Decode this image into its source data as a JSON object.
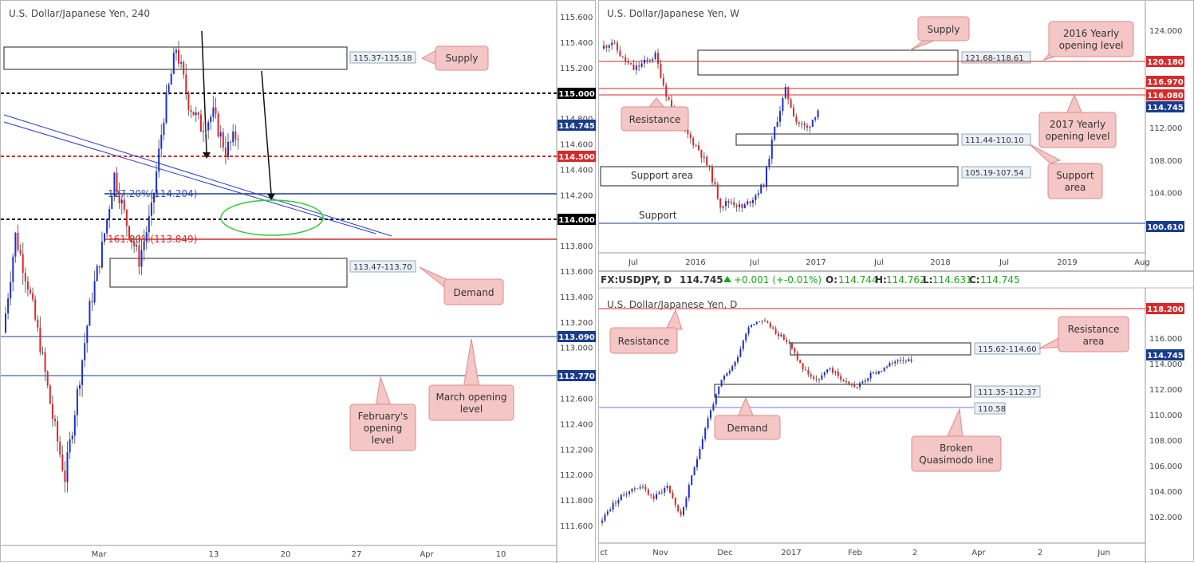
{
  "panels": {
    "h4": {
      "title": "U.S. Dollar/Japanese Yen, 240",
      "y_ticks": [
        "115.600",
        "115.400",
        "115.200",
        "115.000",
        "114.800",
        "114.600",
        "114.400",
        "114.200",
        "114.000",
        "113.800",
        "113.600",
        "113.400",
        "113.200",
        "113.000",
        "112.800",
        "112.600",
        "112.400",
        "112.200",
        "112.000",
        "111.800",
        "111.600"
      ],
      "x_ticks": [
        "Mar",
        "13",
        "20",
        "27",
        "Apr",
        "10"
      ],
      "price_tags": [
        {
          "label": "115.000",
          "color": "#000000"
        },
        {
          "label": "114.745",
          "color": "#1a3c8c"
        },
        {
          "label": "114.500",
          "color": "#d72a2a"
        },
        {
          "label": "114.000",
          "color": "#000000"
        },
        {
          "label": "113.090",
          "color": "#1a3c8c"
        },
        {
          "label": "112.770",
          "color": "#1a3c8c"
        }
      ],
      "zone_labels": {
        "supply": "115.37-115.18",
        "demand": "113.47-113.70"
      },
      "fib_labels": {
        "ext127": "127.20%(114.204)",
        "ext161": "161.80%(113.849)"
      },
      "callouts": {
        "supply": "Supply",
        "demand": "Demand",
        "feb_line1": "February's",
        "feb_line2": "opening",
        "feb_line3": "level",
        "mar_line1": "March opening",
        "mar_line2": "level"
      }
    },
    "weekly": {
      "title": "U.S. Dollar/Japanese Yen, W",
      "y_ticks": [
        "124.000",
        "120.000",
        "116.000",
        "112.000",
        "108.000",
        "104.000",
        "100.000"
      ],
      "x_ticks": [
        "Jul",
        "2016",
        "Jul",
        "2017",
        "Jul",
        "2018",
        "Jul",
        "2019",
        "Aug"
      ],
      "price_tags": [
        {
          "label": "120.180",
          "color": "#d72a2a"
        },
        {
          "label": "116.970",
          "color": "#d72a2a"
        },
        {
          "label": "116.080",
          "color": "#d72a2a"
        },
        {
          "label": "114.745",
          "color": "#1a3c8c"
        },
        {
          "label": "100.610",
          "color": "#1a3c8c"
        }
      ],
      "zone_labels": {
        "supply": "121.68-118.61",
        "support1": "111.44-110.10",
        "support2": "105.19-107.54"
      },
      "callouts": {
        "supply": "Supply",
        "y2016_line1": "2016 Yearly",
        "y2016_line2": "opening level",
        "resistance": "Resistance",
        "y2017_line1": "2017 Yearly",
        "y2017_line2": "opening level",
        "support_area_line1": "Support",
        "support_area_line2": "area",
        "support_area_text": "Support area",
        "support_text": "Support"
      }
    },
    "daily": {
      "header": {
        "symbol": "FX:USDJPY, D",
        "last": "114.745",
        "change": "+0.001 (+-0.01%)",
        "o": "114.744",
        "h": "114.762",
        "l": "114.631",
        "c": "114.745"
      },
      "title": "U.S. Dollar/Japanese Yen, D",
      "y_ticks": [
        "116.000",
        "114.000",
        "112.000",
        "110.000",
        "108.000",
        "106.000",
        "104.000",
        "102.000"
      ],
      "x_ticks": [
        "ct",
        "Nov",
        "Dec",
        "2017",
        "Feb",
        "2",
        "Apr",
        "2",
        "Jun"
      ],
      "price_tags": [
        {
          "label": "118.200",
          "color": "#d72a2a"
        },
        {
          "label": "114.745",
          "color": "#1a3c8c"
        }
      ],
      "zone_labels": {
        "resistance": "115.62-114.60",
        "demand": "111.35-112.37",
        "qm": "110.58"
      },
      "callouts": {
        "resistance": "Resistance",
        "res_area_line1": "Resistance",
        "res_area_line2": "area",
        "demand": "Demand",
        "qm_line1": "Broken",
        "qm_line2": "Quasimodo line"
      }
    }
  },
  "colors": {
    "up": "#1a2fd0",
    "down": "#e0262a",
    "wick": "#555555",
    "callout_bg": "#f4c6c6",
    "callout_border": "#e08b8b"
  },
  "chart_data": [
    {
      "type": "line",
      "title": "U.S. Dollar/Japanese Yen, 240",
      "ylim": [
        111.5,
        115.7
      ],
      "series": [
        {
          "values": [
            113.1,
            113.9,
            113.5,
            113.0,
            112.4,
            111.9,
            112.6,
            113.3,
            113.8,
            114.4,
            114.0,
            113.7,
            114.1,
            114.9,
            115.45,
            115.0,
            114.8,
            114.9,
            114.6,
            114.75
          ]
        }
      ],
      "levels": [
        115.0,
        114.745,
        114.5,
        114.204,
        114.0,
        113.849,
        113.09,
        112.77
      ],
      "zones": [
        [
          115.18,
          115.37
        ],
        [
          113.47,
          113.7
        ]
      ]
    },
    {
      "type": "line",
      "title": "U.S. Dollar/Japanese Yen, W",
      "ylim": [
        98,
        126
      ],
      "series": [
        {
          "values": [
            123.5,
            124.5,
            122.0,
            120.5,
            121.5,
            122.5,
            117.0,
            113.0,
            111.0,
            109.0,
            106.0,
            101.0,
            101.5,
            100.5,
            102.0,
            104.0,
            112.0,
            117.5,
            113.0,
            112.0,
            114.7
          ]
        }
      ],
      "levels": [
        120.18,
        116.97,
        116.08,
        114.745,
        100.61
      ],
      "zones": [
        [
          118.61,
          121.68
        ],
        [
          110.1,
          111.44
        ],
        [
          105.19,
          107.54
        ]
      ]
    },
    {
      "type": "line",
      "title": "U.S. Dollar/Japanese Yen, D",
      "ylim": [
        100.5,
        119
      ],
      "series": [
        {
          "values": [
            101.5,
            103.0,
            104.0,
            104.5,
            103.5,
            104.5,
            102.0,
            106.0,
            110.0,
            113.0,
            114.5,
            117.5,
            118.0,
            117.0,
            116.0,
            114.0,
            113.0,
            114.0,
            113.0,
            112.5,
            113.5,
            114.0,
            114.8,
            114.745
          ]
        }
      ],
      "levels": [
        118.2,
        114.745,
        110.58
      ],
      "zones": [
        [
          114.6,
          115.62
        ],
        [
          111.35,
          112.37
        ]
      ]
    }
  ]
}
